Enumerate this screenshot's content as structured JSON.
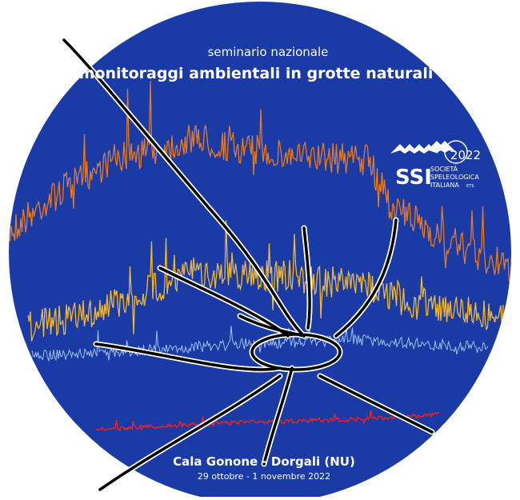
{
  "header": {
    "subtitle": "seminario nazionale",
    "title": "monitoraggi ambientali in grotte naturali"
  },
  "logo": {
    "acronym": "SSI",
    "year": "2022",
    "line1": "SOCIETÀ",
    "line2": "SPELEOLOGICA",
    "line3": "ITALIANA",
    "suffix": "ETS"
  },
  "footer": {
    "place": "Cala Gonone - Dorgali (NU)",
    "dates": "29 ottobre - 1 novembre 2022"
  }
}
